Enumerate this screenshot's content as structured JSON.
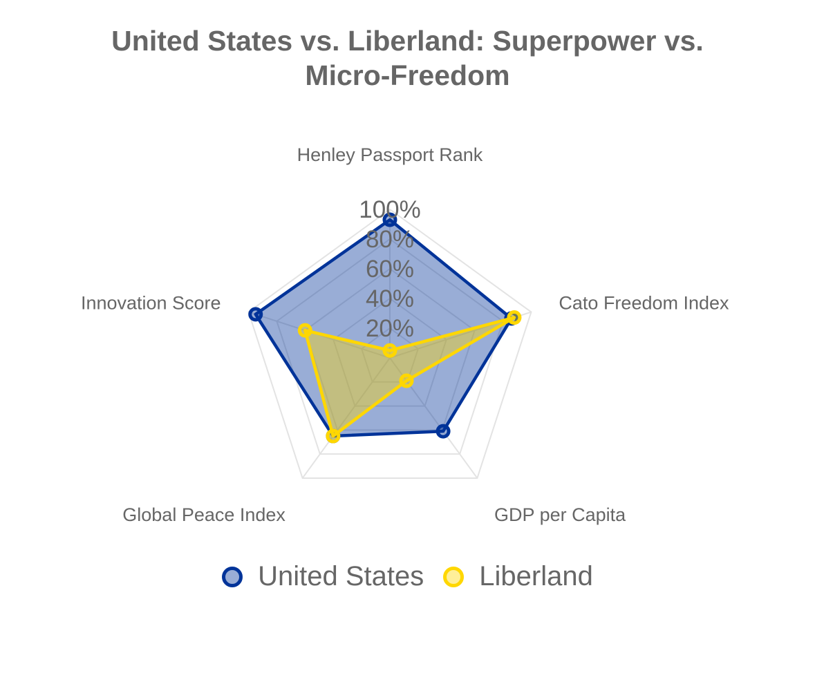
{
  "chart_data": {
    "type": "radar",
    "title": "United States vs. Liberland: Superpower vs. Micro-Freedom",
    "title_lines": [
      "United States vs. Liberland: Superpower vs.",
      "Micro-Freedom"
    ],
    "categories": [
      "Henley Passport Rank",
      "Cato Freedom Index",
      "GDP per Capita",
      "Global Peace Index",
      "Innovation Score"
    ],
    "series": [
      {
        "name": "United States",
        "values": [
          93,
          86,
          61,
          65,
          95
        ],
        "color": "#003399",
        "fill": "rgba(0, 51, 153, 0.4)"
      },
      {
        "name": "Liberland",
        "values": [
          5,
          88,
          19,
          65,
          60
        ],
        "color": "#FFD700",
        "fill": "rgba(255, 215, 0, 0.4)"
      }
    ],
    "ticks": [
      "20%",
      "40%",
      "60%",
      "80%",
      "100%"
    ],
    "rlim": [
      0,
      100
    ],
    "grid": true,
    "legend_position": "bottom"
  }
}
